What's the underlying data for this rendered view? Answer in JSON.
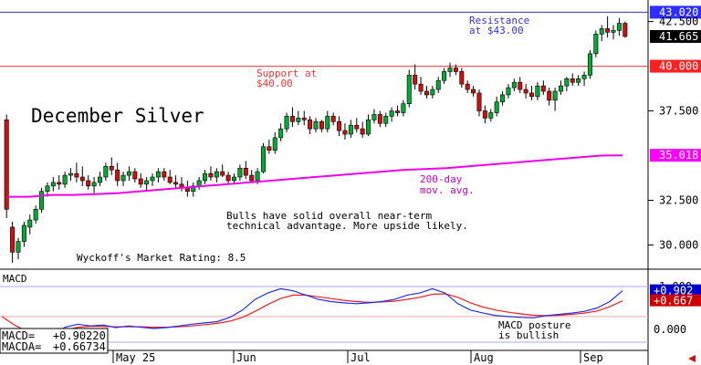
{
  "chart_data": [
    {
      "type": "candlestick",
      "title": "December Silver",
      "ylim": [
        28.8,
        43.5
      ],
      "y_ticks": [
        "43.020",
        "42.500",
        "41.665",
        "40.000",
        "37.500",
        "35.018",
        "32.500",
        "30.000"
      ],
      "y_tick_values": [
        43.02,
        42.5,
        41.665,
        40.0,
        37.5,
        35.018,
        32.5,
        30.0
      ],
      "highlighted_ticks": [
        {
          "label": "43.020",
          "value": 43.02,
          "color": "#2d2dff"
        },
        {
          "label": "41.665",
          "value": 41.665,
          "color": "#000000"
        },
        {
          "label": "40.000",
          "value": 40.0,
          "color": "#ff2020"
        },
        {
          "label": "35.018",
          "value": 35.018,
          "color": "#ff00ff"
        }
      ],
      "lines": [
        {
          "label": "Resistance at $43.00",
          "value": 43.02,
          "color": "#3333cc"
        },
        {
          "label": "Support at $40.00",
          "value": 40.0,
          "color": "#ff3030"
        }
      ],
      "annotations": [
        {
          "id": "resistance",
          "line1": "Resistance",
          "line2": "at $43.00",
          "color": "#3333cc"
        },
        {
          "id": "support",
          "line1": "Support at",
          "line2": "$40.00",
          "color": "#ff3030"
        },
        {
          "id": "ma",
          "line1": "200-day",
          "line2": "mov. avg.",
          "color": "#cc00cc"
        },
        {
          "id": "bulls",
          "line1": "Bulls have solid overall near-term",
          "line2": "technical advantage. More upside likely.",
          "color": "#000000"
        },
        {
          "id": "rating",
          "line1": "Wyckoff's Market Rating: 8.5",
          "line2": "",
          "color": "#000000"
        }
      ],
      "moving_average": {
        "name": "200-day mov. avg.",
        "color": "#ee00ee",
        "values": [
          32.7,
          32.7,
          32.8,
          32.8,
          32.85,
          32.9,
          33.0,
          33.1,
          33.2,
          33.3,
          33.4,
          33.5,
          33.6,
          33.7,
          33.8,
          33.9,
          34.0,
          34.1,
          34.2,
          34.25,
          34.3,
          34.4,
          34.5,
          34.6,
          34.7,
          34.8,
          34.9,
          35.0,
          35.018
        ]
      },
      "candles": [
        [
          37.0,
          37.3,
          31.5,
          32.0
        ],
        [
          31.0,
          31.3,
          29.0,
          29.6
        ],
        [
          29.6,
          30.4,
          29.2,
          30.2
        ],
        [
          30.2,
          31.3,
          29.9,
          31.1
        ],
        [
          31.0,
          31.7,
          30.6,
          31.4
        ],
        [
          31.4,
          32.2,
          31.2,
          32.0
        ],
        [
          32.0,
          33.2,
          31.8,
          33.0
        ],
        [
          33.0,
          33.5,
          32.7,
          33.3
        ],
        [
          33.3,
          33.8,
          33.0,
          33.5
        ],
        [
          33.5,
          33.9,
          33.1,
          33.4
        ],
        [
          33.4,
          34.1,
          33.2,
          33.9
        ],
        [
          33.9,
          34.3,
          33.6,
          34.0
        ],
        [
          34.0,
          34.6,
          33.5,
          33.8
        ],
        [
          33.8,
          34.4,
          33.3,
          33.6
        ],
        [
          33.6,
          33.9,
          33.1,
          33.3
        ],
        [
          33.3,
          33.8,
          32.9,
          33.5
        ],
        [
          33.5,
          34.1,
          33.3,
          33.8
        ],
        [
          33.8,
          34.6,
          33.6,
          34.4
        ],
        [
          34.4,
          34.9,
          33.9,
          34.2
        ],
        [
          34.2,
          34.6,
          33.3,
          33.6
        ],
        [
          33.6,
          34.1,
          33.3,
          33.9
        ],
        [
          33.9,
          34.4,
          33.6,
          34.1
        ],
        [
          34.1,
          34.3,
          33.5,
          33.7
        ],
        [
          33.7,
          34.0,
          33.2,
          33.4
        ],
        [
          33.4,
          33.8,
          33.0,
          33.6
        ],
        [
          33.6,
          34.0,
          33.3,
          33.8
        ],
        [
          33.8,
          34.3,
          33.5,
          34.1
        ],
        [
          34.1,
          34.3,
          33.6,
          33.8
        ],
        [
          33.8,
          34.2,
          33.4,
          33.5
        ],
        [
          33.5,
          33.9,
          33.2,
          33.4
        ],
        [
          33.4,
          33.8,
          33.0,
          33.2
        ],
        [
          33.2,
          33.6,
          32.7,
          33.0
        ],
        [
          33.0,
          33.5,
          32.7,
          33.3
        ],
        [
          33.3,
          33.8,
          33.1,
          33.6
        ],
        [
          33.6,
          34.2,
          33.4,
          34.0
        ],
        [
          34.0,
          34.4,
          33.6,
          33.8
        ],
        [
          33.8,
          34.3,
          33.5,
          34.1
        ],
        [
          34.1,
          34.5,
          33.8,
          33.9
        ],
        [
          33.9,
          34.1,
          33.4,
          33.6
        ],
        [
          33.6,
          34.0,
          33.4,
          33.8
        ],
        [
          33.8,
          34.5,
          33.6,
          34.3
        ],
        [
          34.3,
          34.7,
          33.7,
          33.9
        ],
        [
          33.9,
          34.2,
          33.5,
          33.6
        ],
        [
          33.6,
          34.3,
          33.4,
          34.1
        ],
        [
          34.1,
          35.7,
          34.0,
          35.5
        ],
        [
          35.5,
          35.9,
          35.1,
          35.3
        ],
        [
          35.3,
          36.3,
          35.1,
          36.0
        ],
        [
          36.0,
          36.8,
          35.8,
          36.5
        ],
        [
          36.5,
          37.4,
          36.3,
          37.2
        ],
        [
          37.2,
          37.7,
          36.6,
          36.9
        ],
        [
          36.9,
          37.5,
          36.7,
          37.1
        ],
        [
          37.1,
          37.5,
          36.7,
          37.0
        ],
        [
          37.0,
          37.2,
          36.2,
          36.5
        ],
        [
          36.5,
          37.1,
          36.3,
          36.9
        ],
        [
          36.9,
          37.0,
          36.3,
          36.5
        ],
        [
          36.5,
          37.5,
          36.3,
          37.2
        ],
        [
          37.2,
          37.4,
          36.7,
          36.9
        ],
        [
          36.9,
          37.2,
          36.1,
          36.4
        ],
        [
          36.4,
          36.8,
          35.9,
          36.2
        ],
        [
          36.2,
          37.0,
          36.0,
          36.7
        ],
        [
          36.7,
          37.1,
          36.3,
          36.5
        ],
        [
          36.5,
          36.9,
          36.0,
          36.2
        ],
        [
          36.2,
          37.3,
          36.1,
          37.0
        ],
        [
          37.0,
          37.6,
          36.8,
          37.3
        ],
        [
          37.3,
          37.5,
          36.6,
          36.8
        ],
        [
          36.8,
          37.4,
          36.6,
          37.2
        ],
        [
          37.2,
          37.7,
          36.9,
          37.5
        ],
        [
          37.5,
          37.8,
          37.2,
          37.4
        ],
        [
          37.4,
          38.1,
          37.2,
          37.9
        ],
        [
          37.9,
          39.8,
          37.7,
          39.5
        ],
        [
          39.5,
          40.1,
          38.7,
          39.0
        ],
        [
          39.0,
          39.4,
          38.4,
          38.6
        ],
        [
          38.6,
          38.9,
          38.2,
          38.4
        ],
        [
          38.4,
          38.9,
          38.2,
          38.7
        ],
        [
          38.7,
          39.4,
          38.5,
          39.2
        ],
        [
          39.2,
          39.9,
          39.0,
          39.7
        ],
        [
          39.7,
          40.2,
          39.4,
          39.9
        ],
        [
          39.9,
          40.1,
          39.5,
          39.7
        ],
        [
          39.7,
          39.9,
          38.8,
          39.0
        ],
        [
          39.0,
          39.2,
          38.5,
          38.7
        ],
        [
          38.7,
          38.9,
          38.3,
          38.5
        ],
        [
          38.5,
          38.7,
          37.2,
          37.5
        ],
        [
          37.5,
          37.8,
          36.8,
          37.1
        ],
        [
          37.1,
          37.6,
          36.9,
          37.4
        ],
        [
          37.4,
          38.3,
          37.2,
          38.0
        ],
        [
          38.0,
          38.6,
          37.8,
          38.4
        ],
        [
          38.4,
          39.0,
          38.2,
          38.8
        ],
        [
          38.8,
          39.3,
          38.6,
          39.1
        ],
        [
          39.1,
          39.4,
          38.5,
          38.7
        ],
        [
          38.7,
          39.0,
          38.2,
          38.5
        ],
        [
          38.5,
          38.9,
          38.1,
          38.3
        ],
        [
          38.3,
          39.1,
          38.1,
          38.9
        ],
        [
          38.9,
          39.2,
          38.4,
          38.6
        ],
        [
          38.6,
          38.8,
          37.8,
          38.1
        ],
        [
          38.1,
          38.8,
          37.5,
          38.6
        ],
        [
          38.6,
          39.2,
          38.4,
          38.9
        ],
        [
          38.9,
          39.4,
          38.6,
          39.3
        ],
        [
          39.3,
          39.6,
          38.9,
          39.1
        ],
        [
          39.1,
          39.5,
          38.9,
          39.3
        ],
        [
          39.3,
          39.7,
          38.9,
          39.5
        ],
        [
          39.5,
          40.9,
          39.3,
          40.7
        ],
        [
          40.7,
          42.0,
          40.5,
          41.8
        ],
        [
          41.8,
          42.3,
          41.4,
          42.1
        ],
        [
          42.1,
          42.8,
          41.6,
          41.9
        ],
        [
          41.9,
          42.3,
          41.5,
          42.0
        ],
        [
          42.0,
          42.7,
          41.7,
          42.4
        ],
        [
          42.4,
          42.5,
          41.6,
          41.665
        ]
      ]
    },
    {
      "type": "line",
      "title": "MACD",
      "ylim": [
        -0.45,
        1.3
      ],
      "y_ticks": [
        "+0.902",
        "+0.667",
        "0.000"
      ],
      "y_tick_values": [
        0.902,
        0.667,
        0.0
      ],
      "tick_colors": [
        "#0000cc",
        "#cc0000",
        "#000000"
      ],
      "partial_tick_label": "1.000",
      "readout": [
        {
          "label": "MACD=",
          "value": "+0.90220"
        },
        {
          "label": "MACDA=",
          "value": "+0.66734"
        }
      ],
      "annotation": {
        "line1": "MACD posture",
        "line2": "is bullish"
      },
      "series": [
        {
          "name": "MACD",
          "color": "#2030ee",
          "values": [
            -0.1,
            -0.25,
            -0.35,
            -0.3,
            -0.15,
            0.05,
            0.12,
            0.08,
            0.1,
            0.04,
            0.08,
            0.05,
            0.02,
            0.04,
            0.08,
            0.12,
            0.15,
            0.18,
            0.28,
            0.45,
            0.7,
            0.85,
            0.95,
            0.9,
            0.8,
            0.7,
            0.65,
            0.62,
            0.6,
            0.62,
            0.65,
            0.7,
            0.8,
            0.85,
            0.95,
            0.85,
            0.6,
            0.45,
            0.38,
            0.32,
            0.3,
            0.28,
            0.27,
            0.32,
            0.35,
            0.38,
            0.42,
            0.5,
            0.65,
            0.902
          ]
        },
        {
          "name": "MACDA",
          "color": "#ee2020",
          "values": [
            0.3,
            0.1,
            -0.05,
            -0.15,
            -0.1,
            -0.02,
            0.05,
            0.07,
            0.07,
            0.06,
            0.06,
            0.06,
            0.05,
            0.05,
            0.06,
            0.08,
            0.11,
            0.14,
            0.19,
            0.28,
            0.42,
            0.58,
            0.72,
            0.8,
            0.8,
            0.76,
            0.72,
            0.68,
            0.65,
            0.63,
            0.64,
            0.66,
            0.7,
            0.75,
            0.82,
            0.83,
            0.75,
            0.62,
            0.52,
            0.45,
            0.4,
            0.36,
            0.33,
            0.32,
            0.33,
            0.35,
            0.38,
            0.43,
            0.53,
            0.667
          ]
        }
      ]
    }
  ],
  "x_axis": {
    "labels": [
      "May 25",
      "Jun",
      "Jul",
      "Aug",
      "Sep"
    ],
    "label_dates": [
      "May 25",
      "Jun 1",
      "Jul 1",
      "Aug 1",
      "Sep 1"
    ]
  },
  "colors": {
    "up": "#00aa33",
    "down": "#cc1111",
    "grid": "#9999cc",
    "axis_red": "#dd2222",
    "axis_blue": "#3333ee",
    "arrow": "#cc1111"
  }
}
